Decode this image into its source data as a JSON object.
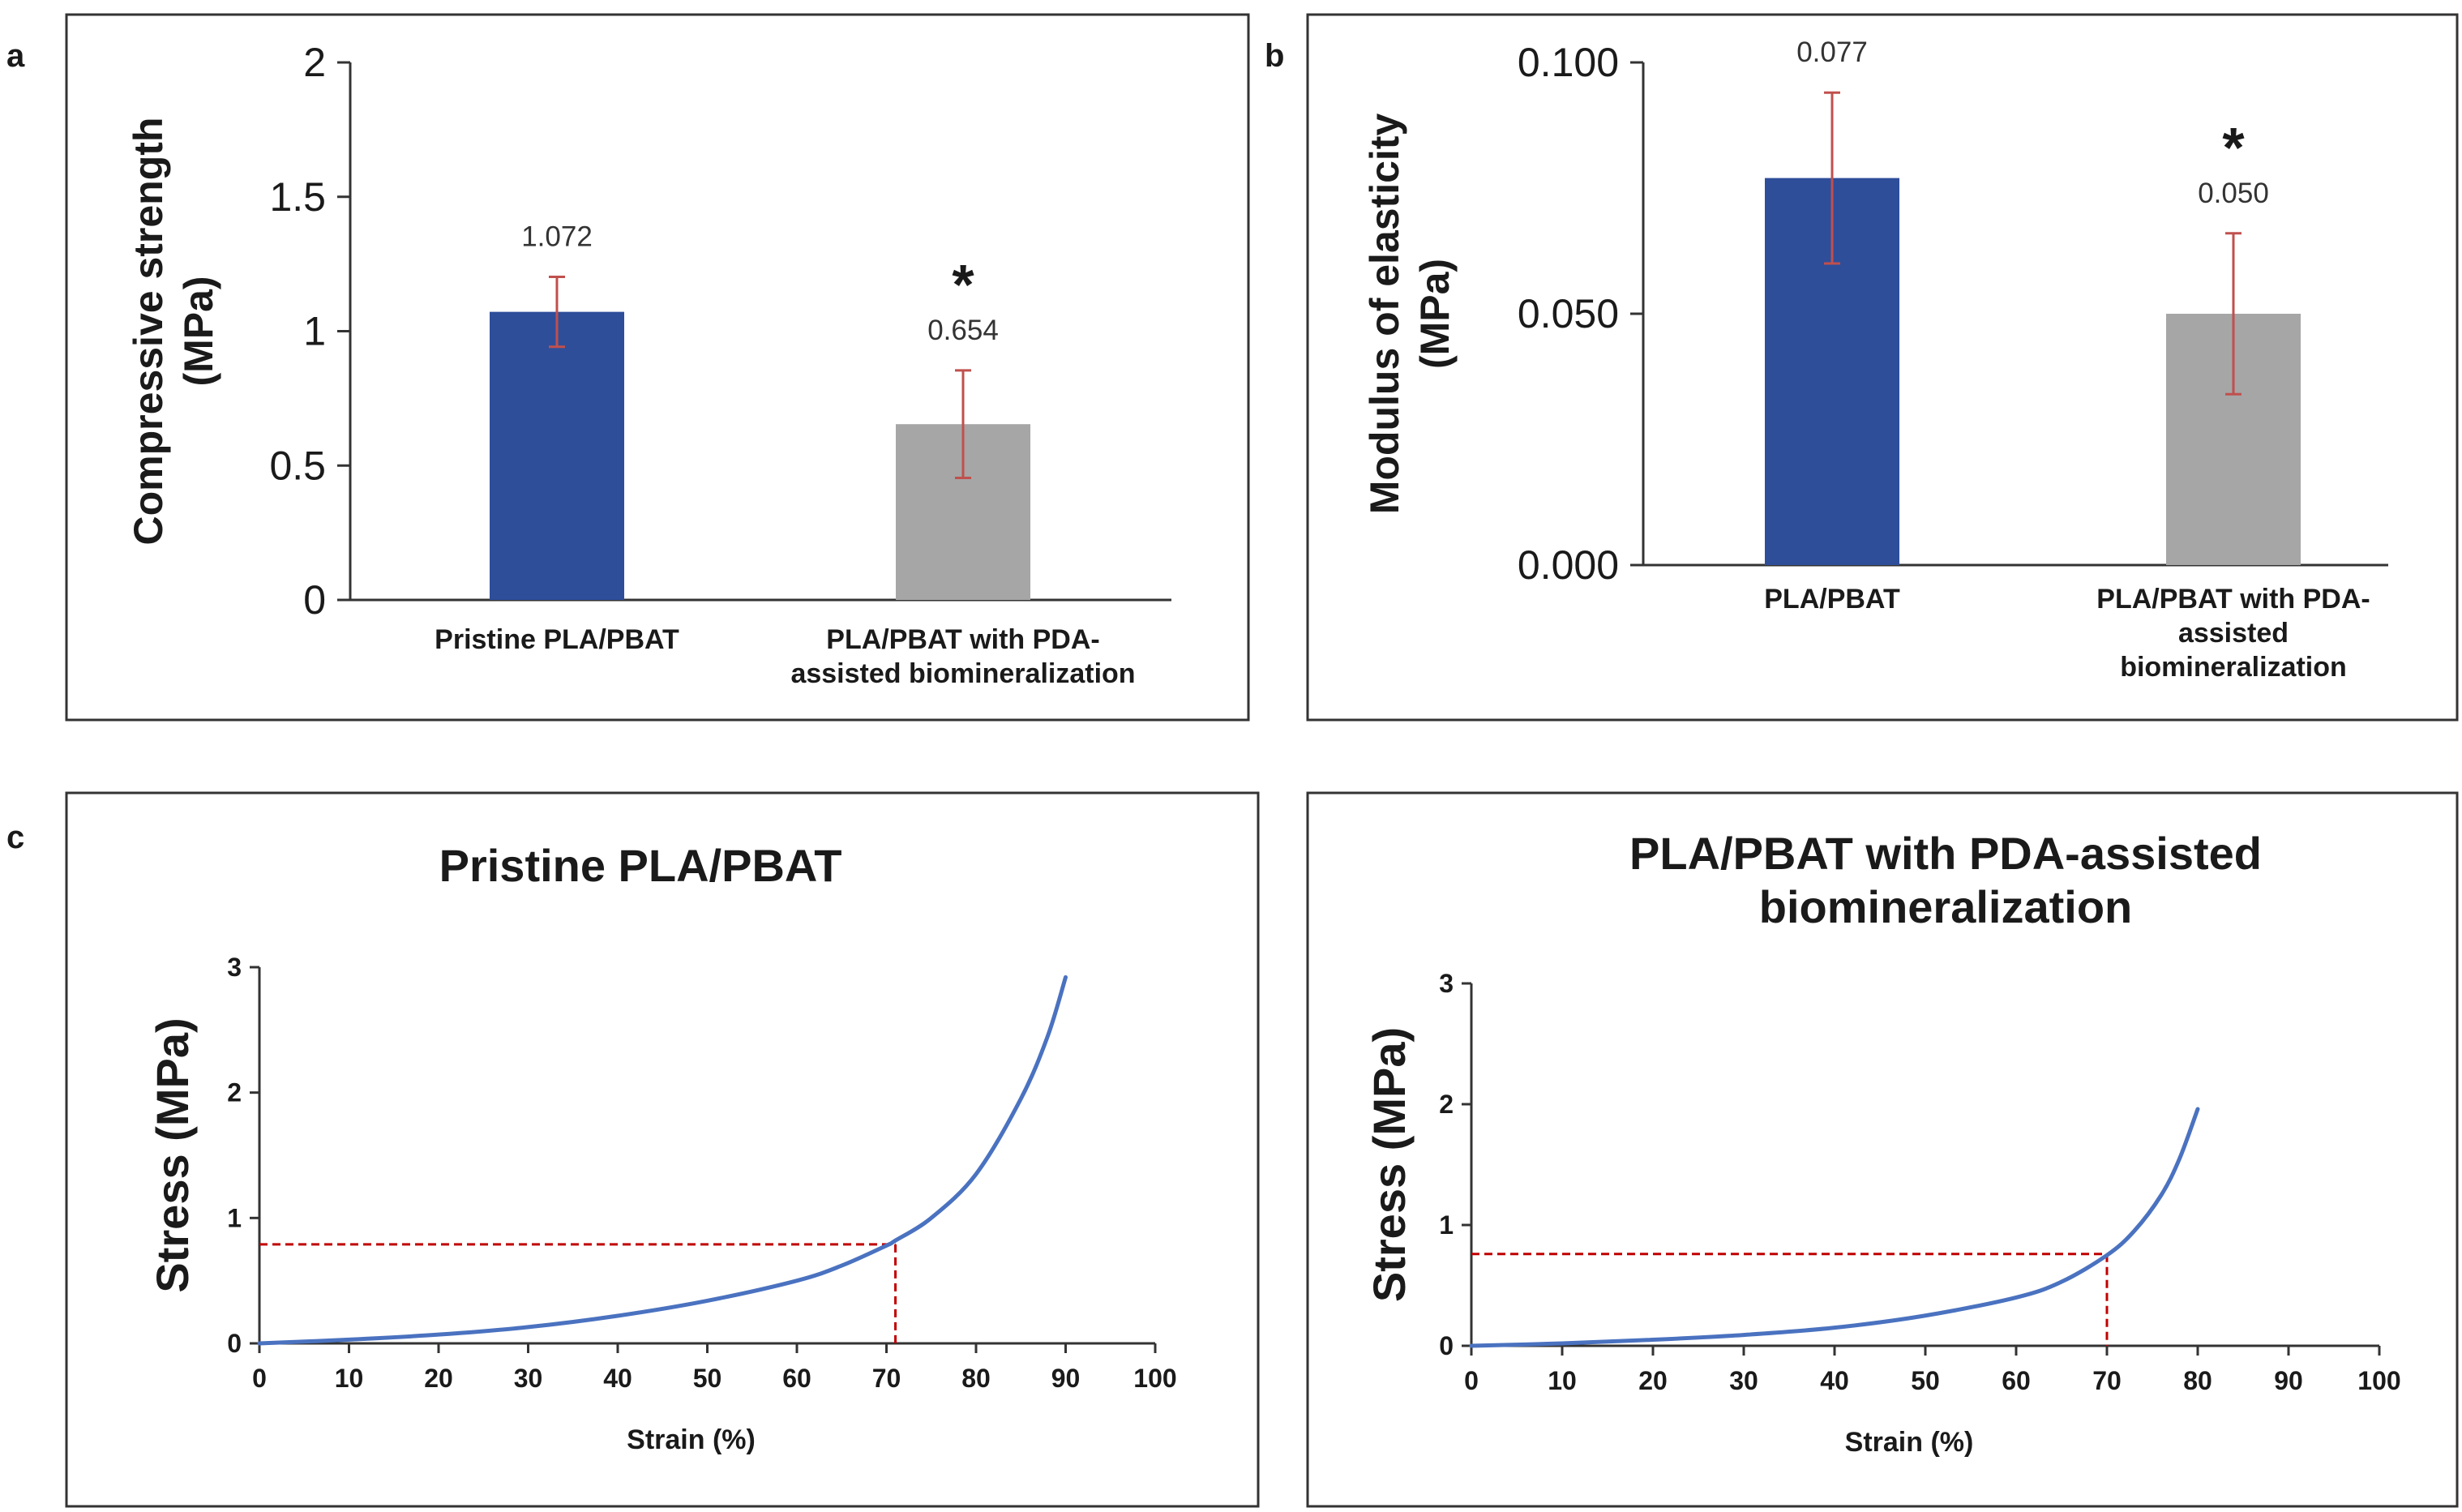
{
  "panel_labels": [
    "a",
    "b",
    "c"
  ],
  "colors": {
    "bar_primary": "#2e4e9a",
    "bar_secondary": "#a6a6a6",
    "error_bar": "#c0504d",
    "curve": "#4a72c0",
    "guide": "#c00000",
    "axis": "#333333"
  },
  "chart_data": [
    {
      "type": "bar",
      "panel": "a",
      "ylabel_line1": "Compressive  strength",
      "ylabel_line2": "(MPa)",
      "ylim": [
        0,
        2
      ],
      "yticks": [
        "0",
        "0.5",
        "1",
        "1.5",
        "2"
      ],
      "categories": [
        {
          "lines": [
            "Pristine PLA/PBAT"
          ]
        },
        {
          "lines": [
            "PLA/PBAT with PDA-",
            "assisted biomineralization"
          ]
        }
      ],
      "values": [
        1.072,
        0.654
      ],
      "errors": [
        0.13,
        0.2
      ],
      "value_labels": [
        "1.072",
        "0.654"
      ],
      "significance": [
        "",
        "*"
      ]
    },
    {
      "type": "bar",
      "panel": "b",
      "ylabel_line1": "Modulus of elasticity",
      "ylabel_line2": "(MPa)",
      "ylim": [
        0,
        0.1
      ],
      "yticks": [
        "0.000",
        "0.050",
        "0.100"
      ],
      "categories": [
        {
          "lines": [
            "PLA/PBAT"
          ]
        },
        {
          "lines": [
            "PLA/PBAT with PDA-",
            "assisted",
            "biomineralization"
          ]
        }
      ],
      "values": [
        0.077,
        0.05
      ],
      "errors": [
        0.017,
        0.016
      ],
      "value_labels": [
        "0.077",
        "0.050"
      ],
      "significance": [
        "",
        "*"
      ]
    },
    {
      "type": "line",
      "panel": "c",
      "title_lines": [
        "Pristine PLA/PBAT"
      ],
      "xlabel": "Strain (%)",
      "ylabel": "Stress (MPa)",
      "xlim": [
        0,
        100
      ],
      "ylim": [
        0,
        3
      ],
      "xticks": [
        "0",
        "10",
        "20",
        "30",
        "40",
        "50",
        "60",
        "70",
        "80",
        "90",
        "100"
      ],
      "yticks": [
        "0",
        "1",
        "2",
        "3"
      ],
      "x": [
        0,
        10,
        20,
        30,
        40,
        50,
        60,
        65,
        70,
        71,
        75,
        80,
        85,
        88,
        90
      ],
      "y": [
        0,
        0.03,
        0.07,
        0.13,
        0.22,
        0.34,
        0.5,
        0.62,
        0.78,
        0.82,
        1.0,
        1.35,
        1.95,
        2.45,
        2.92
      ],
      "guide_point": [
        71,
        0.79
      ]
    },
    {
      "type": "line",
      "panel": "c",
      "title_lines": [
        "PLA/PBAT with PDA-assisted",
        "biomineralization"
      ],
      "xlabel": "Strain (%)",
      "ylabel": "Stress (MPa)",
      "xlim": [
        0,
        100
      ],
      "ylim": [
        0,
        3
      ],
      "xticks": [
        "0",
        "10",
        "20",
        "30",
        "40",
        "50",
        "60",
        "70",
        "80",
        "90",
        "100"
      ],
      "yticks": [
        "0",
        "1",
        "2",
        "3"
      ],
      "x": [
        0,
        10,
        20,
        30,
        40,
        50,
        60,
        65,
        70,
        73,
        76,
        78,
        80
      ],
      "y": [
        0,
        0.02,
        0.05,
        0.09,
        0.15,
        0.25,
        0.4,
        0.53,
        0.75,
        0.95,
        1.25,
        1.55,
        1.96
      ],
      "guide_point": [
        70,
        0.76
      ]
    }
  ]
}
